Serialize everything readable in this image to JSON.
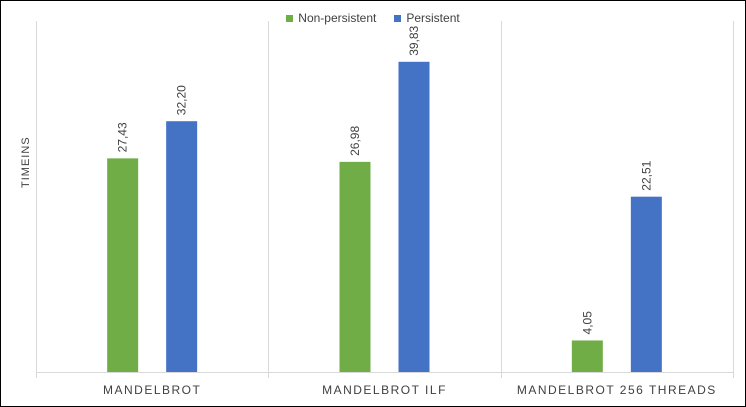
{
  "chart_data": {
    "type": "bar",
    "title": "",
    "xlabel": "",
    "ylabel": "TIMEINS",
    "categories": [
      "MANDELBROT",
      "MANDELBROT ILF",
      "MANDELBROT 256 THREADS"
    ],
    "series": [
      {
        "name": "Non-persistent",
        "color": "#70ad47",
        "values": [
          27.43,
          26.98,
          4.05
        ],
        "labels": [
          "27,43",
          "26,98",
          "4,05"
        ]
      },
      {
        "name": "Persistent",
        "color": "#4472c4",
        "values": [
          32.2,
          39.83,
          22.51
        ],
        "labels": [
          "32,20",
          "39,83",
          "22,51"
        ]
      }
    ],
    "ylim": [
      0,
      42.5
    ],
    "legend": "top-center",
    "grid": "vertical category separators",
    "data_labels": "rotated, above bars"
  }
}
